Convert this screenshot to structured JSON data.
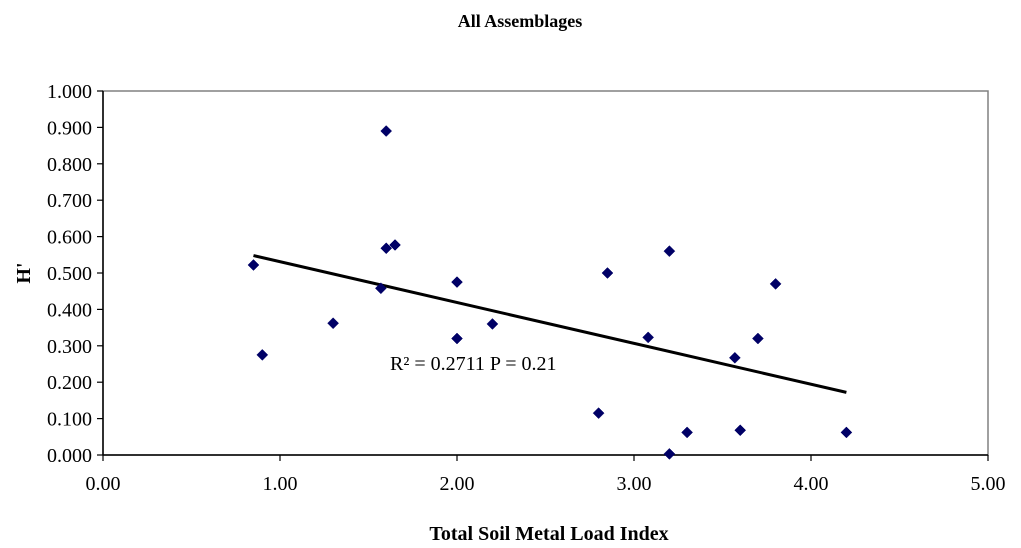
{
  "chart_data": {
    "type": "scatter",
    "title": "All Assemblages",
    "xlabel": "Total Soil Metal Load Index",
    "ylabel": "H'",
    "xlim": [
      0,
      5
    ],
    "ylim": [
      0,
      1
    ],
    "x_ticks": [
      "0.00",
      "1.00",
      "2.00",
      "3.00",
      "4.00",
      "5.00"
    ],
    "y_ticks": [
      "0.000",
      "0.100",
      "0.200",
      "0.300",
      "0.400",
      "0.500",
      "0.600",
      "0.700",
      "0.800",
      "0.900",
      "1.000"
    ],
    "grid": false,
    "legend": "none",
    "points": [
      {
        "x": 0.85,
        "y": 0.522
      },
      {
        "x": 0.9,
        "y": 0.275
      },
      {
        "x": 1.3,
        "y": 0.362
      },
      {
        "x": 1.57,
        "y": 0.458
      },
      {
        "x": 1.6,
        "y": 0.568
      },
      {
        "x": 1.6,
        "y": 0.89
      },
      {
        "x": 1.65,
        "y": 0.577
      },
      {
        "x": 2.0,
        "y": 0.475
      },
      {
        "x": 2.0,
        "y": 0.32
      },
      {
        "x": 2.2,
        "y": 0.36
      },
      {
        "x": 2.8,
        "y": 0.115
      },
      {
        "x": 2.85,
        "y": 0.5
      },
      {
        "x": 3.08,
        "y": 0.323
      },
      {
        "x": 3.2,
        "y": 0.56
      },
      {
        "x": 3.2,
        "y": 0.003
      },
      {
        "x": 3.3,
        "y": 0.062
      },
      {
        "x": 3.57,
        "y": 0.267
      },
      {
        "x": 3.6,
        "y": 0.068
      },
      {
        "x": 3.7,
        "y": 0.32
      },
      {
        "x": 3.8,
        "y": 0.47
      },
      {
        "x": 4.2,
        "y": 0.062
      }
    ],
    "trendline": {
      "x": [
        0.85,
        4.2
      ],
      "y": [
        0.548,
        0.172
      ]
    },
    "annotation": "R² = 0.2711   P = 0.21",
    "marker_color": "#000066",
    "line_color": "#000000",
    "plot_border_color": "#808080"
  }
}
